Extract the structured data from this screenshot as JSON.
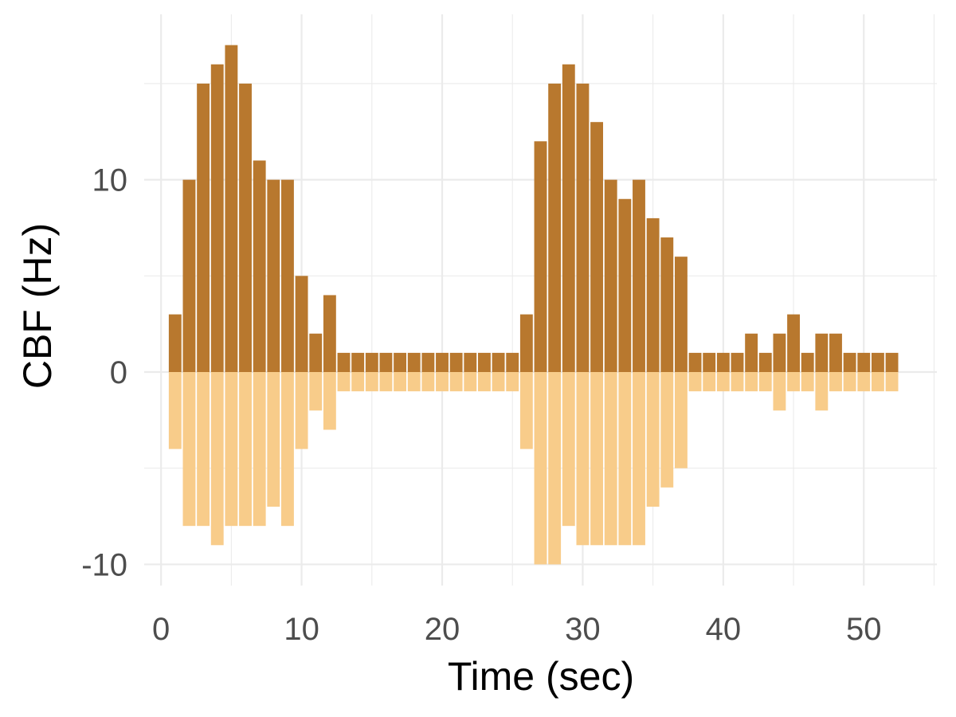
{
  "chart_data": {
    "type": "bar",
    "xlabel": "Time (sec)",
    "ylabel": "CBF (Hz)",
    "xlim": [
      -1.2,
      55.2
    ],
    "ylim": [
      -11.1,
      18.6
    ],
    "x_ticks": [
      0,
      10,
      20,
      30,
      40,
      50
    ],
    "y_ticks": [
      -10,
      0,
      10
    ],
    "grid": true,
    "legend": "none",
    "bar_width": 0.9,
    "x": [
      1,
      2,
      3,
      4,
      5,
      6,
      7,
      8,
      9,
      10,
      11,
      12,
      13,
      14,
      15,
      16,
      17,
      18,
      19,
      20,
      21,
      22,
      23,
      24,
      25,
      26,
      27,
      28,
      29,
      30,
      31,
      32,
      33,
      34,
      35,
      36,
      37,
      38,
      39,
      40,
      41,
      42,
      43,
      44,
      45,
      46,
      47,
      48,
      49,
      50,
      51,
      52
    ],
    "series": [
      {
        "color": "#b8782e",
        "values": [
          3,
          10,
          15,
          16,
          17,
          15,
          11,
          10,
          10,
          5,
          2,
          4,
          1,
          1,
          1,
          1,
          1,
          1,
          1,
          1,
          1,
          1,
          1,
          1,
          1,
          3,
          12,
          15,
          16,
          15,
          13,
          10,
          9,
          10,
          8,
          7,
          6,
          1,
          1,
          1,
          1,
          2,
          1,
          2,
          3,
          1,
          2,
          2,
          1,
          1,
          1,
          1
        ]
      },
      {
        "color": "#f8cc8a",
        "values": [
          -4,
          -8,
          -8,
          -9,
          -8,
          -8,
          -8,
          -7,
          -8,
          -4,
          -2,
          -3,
          -1,
          -1,
          -1,
          -1,
          -1,
          -1,
          -1,
          -1,
          -1,
          -1,
          -1,
          -1,
          -1,
          -4,
          -10,
          -10,
          -8,
          -9,
          -9,
          -9,
          -9,
          -9,
          -7,
          -6,
          -5,
          -1,
          -1,
          -1,
          -1,
          -1,
          -1,
          -2,
          -1,
          -1,
          -2,
          -1,
          -1,
          -1,
          -1,
          -1
        ]
      }
    ]
  }
}
